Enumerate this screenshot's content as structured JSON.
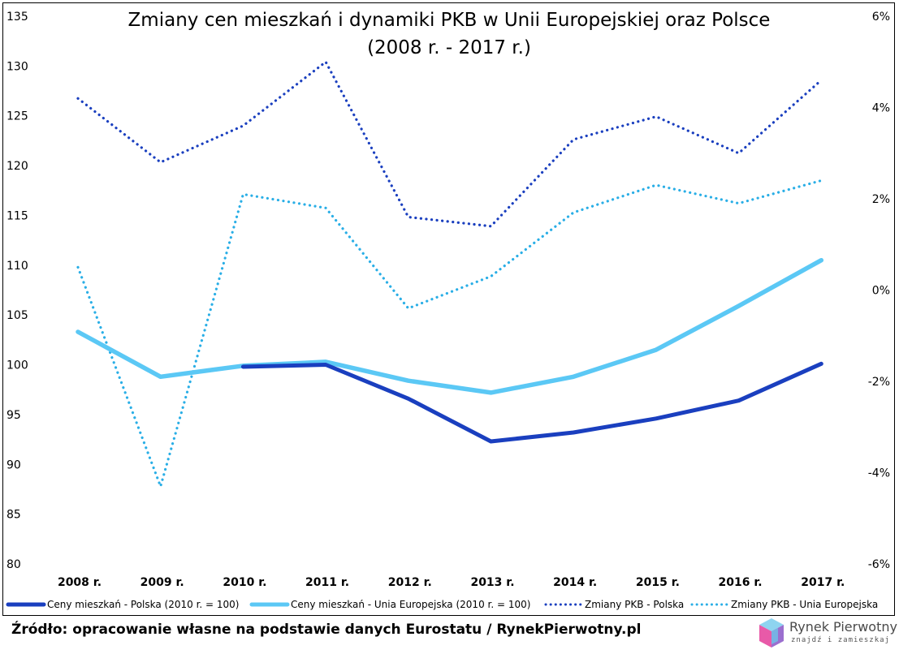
{
  "chart_data": {
    "type": "line",
    "title_line1": "Zmiany cen mieszkań i dynamiki PKB w Unii Europejskiej oraz Polsce",
    "title_line2": "(2008 r. - 2017 r.)",
    "categories": [
      "2008 r.",
      "2009 r.",
      "2010 r.",
      "2011 r.",
      "2012 r.",
      "2013 r.",
      "2014 r.",
      "2015 r.",
      "2016 r.",
      "2017 r."
    ],
    "y_left": {
      "min": 80,
      "max": 135,
      "step": 5,
      "ticks": [
        "80",
        "85",
        "90",
        "95",
        "100",
        "105",
        "110",
        "115",
        "120",
        "125",
        "130",
        "135"
      ]
    },
    "y_right": {
      "min": -6,
      "max": 6,
      "step": 2,
      "ticks": [
        "-6%",
        "-4%",
        "-2%",
        "0%",
        "2%",
        "4%",
        "6%"
      ]
    },
    "grid": false,
    "legend_position": "bottom",
    "series": [
      {
        "name": "Ceny mieszkań - Polska (2010 r. = 100)",
        "axis": "left",
        "style": "solid",
        "color": "#1a3fbf",
        "values": [
          null,
          null,
          99.8,
          100.0,
          96.6,
          92.3,
          93.2,
          94.6,
          96.4,
          100.1
        ]
      },
      {
        "name": "Ceny mieszkań - Unia Europejska (2010 r. = 100)",
        "axis": "left",
        "style": "solid",
        "color": "#5bc8f5",
        "values": [
          103.3,
          98.8,
          99.9,
          100.3,
          98.4,
          97.2,
          98.8,
          101.5,
          105.9,
          110.5
        ]
      },
      {
        "name": "Zmiany PKB - Polska",
        "axis": "right",
        "style": "dotted",
        "color": "#1a3fbf",
        "values": [
          4.2,
          2.8,
          3.6,
          5.0,
          1.6,
          1.4,
          3.3,
          3.8,
          3.0,
          4.6
        ]
      },
      {
        "name": "Zmiany PKB - Unia Europejska",
        "axis": "right",
        "style": "dotted",
        "color": "#29aee6",
        "values": [
          0.5,
          -4.3,
          2.1,
          1.8,
          -0.4,
          0.3,
          1.7,
          2.3,
          1.9,
          2.4
        ]
      }
    ]
  },
  "source": "Źródło: opracowanie własne na podstawie danych Eurostatu / RynekPierwotny.pl",
  "logo": {
    "name": "Rynek Pierwotny",
    "tagline": "znajdź i zamieszkaj"
  }
}
